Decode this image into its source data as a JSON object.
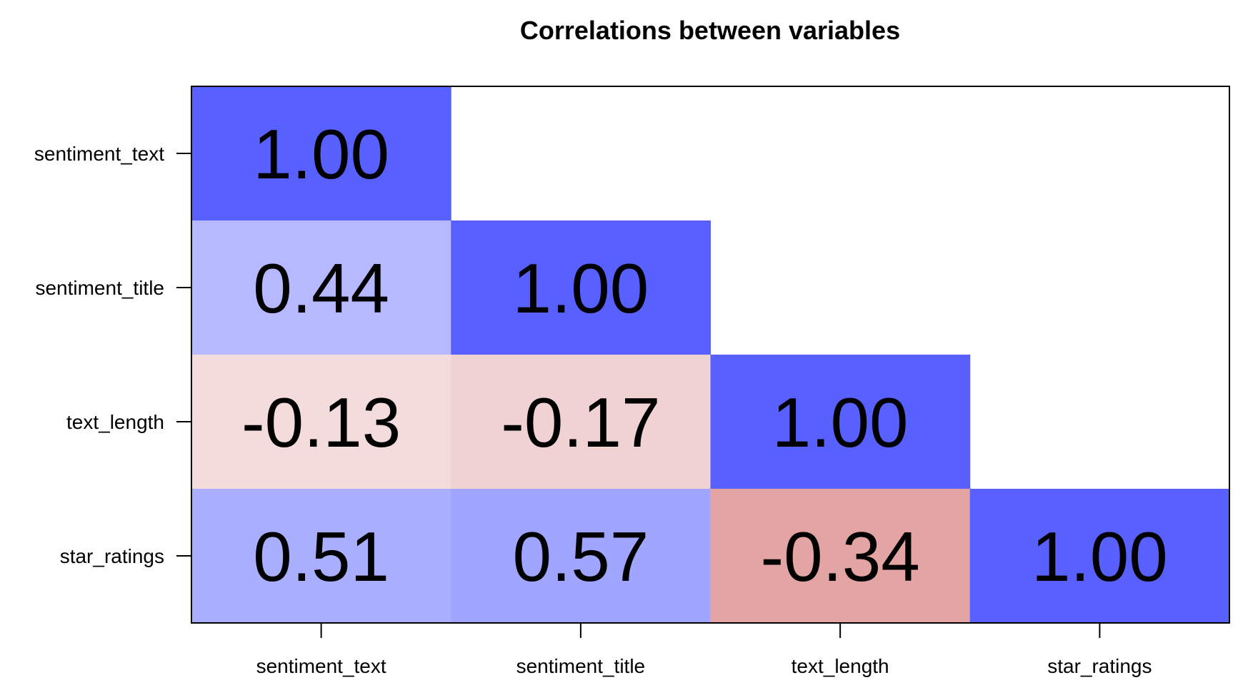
{
  "chart_data": {
    "type": "heatmap",
    "title": "Correlations between variables",
    "xlabel": "",
    "ylabel": "",
    "x_categories": [
      "sentiment_text",
      "sentiment_title",
      "text_length",
      "star_ratings"
    ],
    "y_categories": [
      "sentiment_text",
      "sentiment_title",
      "text_length",
      "star_ratings"
    ],
    "matrix": [
      [
        1.0,
        null,
        null,
        null
      ],
      [
        0.44,
        1.0,
        null,
        null
      ],
      [
        -0.13,
        -0.17,
        1.0,
        null
      ],
      [
        0.51,
        0.57,
        -0.34,
        1.0
      ]
    ],
    "value_labels": [
      [
        "1.00",
        null,
        null,
        null
      ],
      [
        "0.44",
        "1.00",
        null,
        null
      ],
      [
        "-0.13",
        "-0.17",
        "1.00",
        null
      ],
      [
        "0.51",
        "0.57",
        "-0.34",
        "1.00"
      ]
    ],
    "triangle": "lower",
    "color_positive": "#5861ff",
    "color_negative": "#e3a4a4",
    "color_zero": "#ffffff",
    "grid": false,
    "legend": "none"
  }
}
